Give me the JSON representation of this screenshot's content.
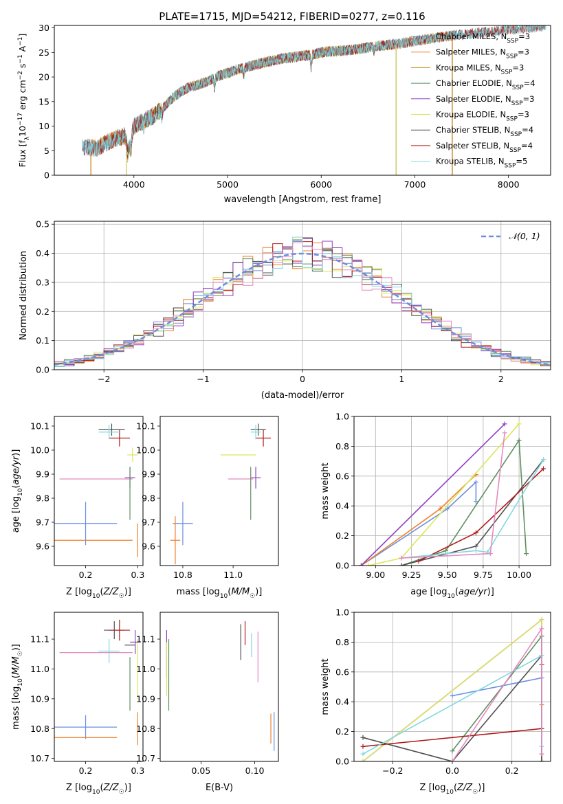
{
  "figure": {
    "title": "PLATE=1715, MJD=54212, FIBERID=0277, z=0.116"
  },
  "colors": {
    "Chabrier MILES": "#6b8fe0",
    "Salpeter MILES": "#f07f2a",
    "Kroupa MILES": "#c8901e",
    "Chabrier ELODIE": "#5f8f5f",
    "Salpeter ELODIE": "#8f3fbf",
    "Kroupa ELODIE": "#dbe65a",
    "Chabrier STELIB": "#505050",
    "Salpeter STELIB": "#b01a1a",
    "Kroupa STELIB": "#82d8e0",
    "normal_curve": "#6b8fe0",
    "extra_pink": "#e58ac0"
  },
  "chart_data": [
    {
      "id": "spectrum",
      "type": "line",
      "title": "PLATE=1715, MJD=54212, FIBERID=0277, z=0.116",
      "xlabel": "wavelength [Angstrom, rest frame]",
      "ylabel": "Flux [fλ10⁻¹⁷ erg cm⁻² s⁻¹ A⁻¹]",
      "xlim": [
        3150,
        8450
      ],
      "ylim": [
        0,
        30.5
      ],
      "xticks": [
        4000,
        5000,
        6000,
        7000,
        8000
      ],
      "yticks": [
        0,
        5,
        10,
        15,
        20,
        25,
        30
      ],
      "legend_position": "right",
      "continuum": {
        "x": [
          3450,
          3600,
          3700,
          3800,
          3900,
          3950,
          4000,
          4100,
          4200,
          4300,
          4400,
          4500,
          4600,
          4700,
          4800,
          4900,
          5000,
          5100,
          5200,
          5300,
          5400,
          5500,
          5600,
          5700,
          5800,
          5900,
          6000,
          6100,
          6200,
          6300,
          6400,
          6500,
          6600,
          6700,
          6800,
          6900,
          7000,
          7100,
          7200,
          7300,
          7400,
          7500,
          7600,
          7700,
          7800,
          7900,
          8000,
          8100,
          8200,
          8300,
          8400
        ],
        "y": [
          5.8,
          5.5,
          6.5,
          7.5,
          8.0,
          5.5,
          10.0,
          11.0,
          12.0,
          13.5,
          15.5,
          17.0,
          18.0,
          18.5,
          19.2,
          20.2,
          20.8,
          21.5,
          22.0,
          22.5,
          23.0,
          23.4,
          23.8,
          24.0,
          24.3,
          24.5,
          25.0,
          25.2,
          25.3,
          25.5,
          25.7,
          26.0,
          26.3,
          26.5,
          26.7,
          27.0,
          27.3,
          27.6,
          27.9,
          28.2,
          28.4,
          28.6,
          28.8,
          29.0,
          29.2,
          29.4,
          29.6,
          29.8,
          30.0,
          30.2,
          30.4
        ]
      },
      "dips": [
        {
          "x": 3934,
          "depth": 2.0
        },
        {
          "x": 3969,
          "depth": 2.0
        },
        {
          "x": 4102,
          "depth": 1.0
        },
        {
          "x": 4300,
          "depth": 1.5
        },
        {
          "x": 4861,
          "depth": 2.0
        },
        {
          "x": 5175,
          "depth": 1.5
        },
        {
          "x": 5893,
          "depth": 2.5
        },
        {
          "x": 6563,
          "depth": 1.0
        }
      ],
      "series": [
        {
          "name": "Chabrier MILES, N_SSP=3",
          "color": "#6b8fe0",
          "range": [
            3450,
            7400
          ]
        },
        {
          "name": "Salpeter MILES, N_SSP=3",
          "color": "#f07f2a",
          "range": [
            3540,
            7400
          ]
        },
        {
          "name": "Kroupa MILES, N_SSP=3",
          "color": "#c8901e",
          "range": [
            3540,
            7400
          ]
        },
        {
          "name": "Chabrier ELODIE, N_SSP=4",
          "color": "#5f8f5f",
          "range": [
            3920,
            6800
          ]
        },
        {
          "name": "Salpeter ELODIE, N_SSP=3",
          "color": "#8f3fbf",
          "range": [
            3920,
            6800
          ]
        },
        {
          "name": "Kroupa ELODIE, N_SSP=3",
          "color": "#dbe65a",
          "range": [
            3920,
            6800
          ]
        },
        {
          "name": "Chabrier STELIB, N_SSP=4",
          "color": "#505050",
          "range": [
            3450,
            8400
          ]
        },
        {
          "name": "Salpeter STELIB, N_SSP=4",
          "color": "#b01a1a",
          "range": [
            3450,
            8400
          ]
        },
        {
          "name": "Kroupa STELIB, N_SSP=5",
          "color": "#82d8e0",
          "range": [
            3450,
            8400
          ]
        }
      ],
      "legend": [
        {
          "prefix": "Chabrier MILES, N",
          "sub": "SSP",
          "suffix": "=3",
          "color": "#6b8fe0"
        },
        {
          "prefix": "Salpeter MILES, N",
          "sub": "SSP",
          "suffix": "=3",
          "color": "#f07f2a"
        },
        {
          "prefix": "Kroupa MILES, N",
          "sub": "SSP",
          "suffix": "=3",
          "color": "#c8901e"
        },
        {
          "prefix": "Chabrier ELODIE, N",
          "sub": "SSP",
          "suffix": "=4",
          "color": "#5f8f5f"
        },
        {
          "prefix": "Salpeter ELODIE, N",
          "sub": "SSP",
          "suffix": "=3",
          "color": "#8f3fbf"
        },
        {
          "prefix": "Kroupa ELODIE, N",
          "sub": "SSP",
          "suffix": "=3",
          "color": "#dbe65a"
        },
        {
          "prefix": "Chabrier STELIB, N",
          "sub": "SSP",
          "suffix": "=4",
          "color": "#505050"
        },
        {
          "prefix": "Salpeter STELIB, N",
          "sub": "SSP",
          "suffix": "=4",
          "color": "#b01a1a"
        },
        {
          "prefix": "Kroupa STELIB, N",
          "sub": "SSP",
          "suffix": "=5",
          "color": "#82d8e0"
        }
      ]
    },
    {
      "id": "residuals",
      "type": "line",
      "xlabel": "(data-model)/error",
      "ylabel": "Normed distribution",
      "xlim": [
        -2.5,
        2.5
      ],
      "ylim": [
        0,
        0.51
      ],
      "xticks": [
        -2,
        -1,
        0,
        1,
        2
      ],
      "yticks": [
        0.0,
        0.1,
        0.2,
        0.3,
        0.4,
        0.5
      ],
      "grid": true,
      "legend_position": "top-right",
      "legend": [
        {
          "label": "𝒩(0, 1)",
          "color": "#6b8fe0"
        }
      ],
      "bin_width": 0.1,
      "series_colors": [
        "#6b8fe0",
        "#f07f2a",
        "#5f8f5f",
        "#8f3fbf",
        "#dbe65a",
        "#505050",
        "#b01a1a",
        "#82d8e0",
        "#e58ac0"
      ]
    },
    {
      "id": "age-vs-Z",
      "type": "scatter",
      "xlabel": "Z [log10(Z/Z☉)]",
      "ylabel": "age [log10(age/yr)]",
      "xlim": [
        0.14,
        0.31
      ],
      "ylim": [
        9.52,
        10.14
      ],
      "xticks": [
        0.2,
        0.3
      ],
      "yticks": [
        9.6,
        9.7,
        9.8,
        9.9,
        10.0,
        10.1
      ],
      "points": [
        {
          "x": 0.2,
          "y": 9.695,
          "xerr": 0.06,
          "yerr": 0.09,
          "color": "#6b8fe0"
        },
        {
          "x": 0.2,
          "y": 9.625,
          "xerr": 0.09,
          "yerr": 0.0,
          "color": "#f07f2a"
        },
        {
          "x": 0.3,
          "y": 9.625,
          "xerr": 0.0,
          "yerr": 0.07,
          "color": "#f07f2a"
        },
        {
          "x": 0.25,
          "y": 10.085,
          "xerr": 0.025,
          "yerr": 0.025,
          "color": "#505050"
        },
        {
          "x": 0.265,
          "y": 10.05,
          "xerr": 0.02,
          "yerr": 0.035,
          "color": "#b01a1a"
        },
        {
          "x": 0.245,
          "y": 10.075,
          "xerr": 0.02,
          "yerr": 0.03,
          "color": "#82d8e0"
        },
        {
          "x": 0.285,
          "y": 9.885,
          "xerr": 0.01,
          "yerr": 0.045,
          "color": "#8f3fbf"
        },
        {
          "x": 0.22,
          "y": 9.88,
          "xerr": 0.07,
          "yerr": 0.0,
          "color": "#e58ac0"
        },
        {
          "x": 0.285,
          "y": 9.82,
          "xerr": 0.0,
          "yerr": 0.11,
          "color": "#5f8f5f"
        },
        {
          "x": 0.29,
          "y": 9.98,
          "xerr": 0.01,
          "yerr": 0.03,
          "color": "#dbe65a"
        }
      ]
    },
    {
      "id": "age-vs-mass",
      "type": "scatter",
      "xlabel": "mass [log10(M/M☉)]",
      "ylabel": "",
      "xlim": [
        10.71,
        11.18
      ],
      "ylim": [
        9.52,
        10.14
      ],
      "xticks": [
        10.8,
        11.0
      ],
      "yticks": [
        9.6,
        9.7,
        9.8,
        9.9,
        10.0,
        10.1
      ],
      "points": [
        {
          "x": 10.8,
          "y": 9.695,
          "xerr": 0.04,
          "yerr": 0.09,
          "color": "#6b8fe0"
        },
        {
          "x": 10.77,
          "y": 9.625,
          "xerr": 0.02,
          "yerr": 0.1,
          "color": "#f07f2a"
        },
        {
          "x": 11.1,
          "y": 10.085,
          "xerr": 0.03,
          "yerr": 0.025,
          "color": "#505050"
        },
        {
          "x": 11.12,
          "y": 10.05,
          "xerr": 0.03,
          "yerr": 0.035,
          "color": "#b01a1a"
        },
        {
          "x": 11.09,
          "y": 10.075,
          "xerr": 0.02,
          "yerr": 0.03,
          "color": "#82d8e0"
        },
        {
          "x": 11.09,
          "y": 9.885,
          "xerr": 0.02,
          "yerr": 0.045,
          "color": "#8f3fbf"
        },
        {
          "x": 11.03,
          "y": 9.88,
          "xerr": 0.05,
          "yerr": 0.0,
          "color": "#e58ac0"
        },
        {
          "x": 11.07,
          "y": 9.82,
          "xerr": 0.0,
          "yerr": 0.11,
          "color": "#5f8f5f"
        },
        {
          "x": 11.02,
          "y": 9.98,
          "xerr": 0.07,
          "yerr": 0.0,
          "color": "#dbe65a"
        }
      ]
    },
    {
      "id": "mass-weight-vs-age",
      "type": "line",
      "xlabel": "age [log10(age/yr)]",
      "ylabel": "mass weight",
      "xlim": [
        8.85,
        10.22
      ],
      "ylim": [
        0,
        1.0
      ],
      "xticks": [
        9.0,
        9.25,
        9.5,
        9.75,
        10.0
      ],
      "yticks": [
        0.0,
        0.2,
        0.4,
        0.6,
        0.8,
        1.0
      ],
      "grid": true,
      "series": [
        {
          "color": "#6b8fe0",
          "x": [
            8.9,
            9.5,
            9.7,
            9.7
          ],
          "y": [
            0.0,
            0.38,
            0.56,
            0.43
          ]
        },
        {
          "color": "#f07f2a",
          "x": [
            8.9,
            9.45,
            9.7
          ],
          "y": [
            0.0,
            0.38,
            0.61
          ]
        },
        {
          "color": "#8f3fbf",
          "x": [
            8.9,
            9.9
          ],
          "y": [
            0.0,
            0.95
          ]
        },
        {
          "color": "#dbe65a",
          "x": [
            8.95,
            9.18,
            10.0
          ],
          "y": [
            0.0,
            0.05,
            0.95
          ]
        },
        {
          "color": "#5f8f5f",
          "x": [
            9.18,
            9.49,
            10.0,
            10.05
          ],
          "y": [
            0.0,
            0.1,
            0.84,
            0.08
          ]
        },
        {
          "color": "#505050",
          "x": [
            9.18,
            9.7,
            10.17
          ],
          "y": [
            0.0,
            0.13,
            0.71
          ]
        },
        {
          "color": "#b01a1a",
          "x": [
            9.3,
            9.7,
            10.17
          ],
          "y": [
            0.03,
            0.22,
            0.65
          ]
        },
        {
          "color": "#82d8e0",
          "x": [
            9.18,
            9.7,
            9.78,
            10.17
          ],
          "y": [
            0.05,
            0.1,
            0.09,
            0.71
          ]
        },
        {
          "color": "#e58ac0",
          "x": [
            9.18,
            9.8,
            9.9
          ],
          "y": [
            0.05,
            0.08,
            0.89
          ]
        }
      ]
    },
    {
      "id": "mass-vs-Z",
      "type": "scatter",
      "xlabel": "Z [log10(Z/Z☉)]",
      "ylabel": "mass [log10(M/M☉)]",
      "xlim": [
        0.14,
        0.31
      ],
      "ylim": [
        10.69,
        11.19
      ],
      "xticks": [
        0.2,
        0.3
      ],
      "yticks": [
        10.7,
        10.8,
        10.9,
        11.0,
        11.1
      ],
      "points": [
        {
          "x": 0.2,
          "y": 10.805,
          "xerr": 0.06,
          "yerr": 0.04,
          "color": "#6b8fe0"
        },
        {
          "x": 0.2,
          "y": 10.77,
          "xerr": 0.06,
          "yerr": 0.0,
          "color": "#f07f2a"
        },
        {
          "x": 0.3,
          "y": 10.8,
          "xerr": 0.0,
          "yerr": 0.055,
          "color": "#f07f2a"
        },
        {
          "x": 0.255,
          "y": 11.13,
          "xerr": 0.02,
          "yerr": 0.03,
          "color": "#505050"
        },
        {
          "x": 0.265,
          "y": 11.13,
          "xerr": 0.02,
          "yerr": 0.035,
          "color": "#b01a1a"
        },
        {
          "x": 0.245,
          "y": 11.06,
          "xerr": 0.02,
          "yerr": 0.04,
          "color": "#82d8e0"
        },
        {
          "x": 0.295,
          "y": 11.09,
          "xerr": 0.01,
          "yerr": 0.04,
          "color": "#8f3fbf"
        },
        {
          "x": 0.22,
          "y": 11.055,
          "xerr": 0.07,
          "yerr": 0.0,
          "color": "#e58ac0"
        },
        {
          "x": 0.285,
          "y": 10.95,
          "xerr": 0.0,
          "yerr": 0.09,
          "color": "#5f8f5f"
        },
        {
          "x": 0.285,
          "y": 11.08,
          "xerr": 0.01,
          "yerr": 0.0,
          "color": "#505050"
        },
        {
          "x": 0.3,
          "y": 11.0,
          "xerr": 0.0,
          "yerr": 0.1,
          "color": "#dbe65a"
        }
      ]
    },
    {
      "id": "mass-vs-EBV",
      "type": "scatter",
      "xlabel": "E(B-V)",
      "ylabel": "",
      "xlim": [
        0.012,
        0.122
      ],
      "ylim": [
        10.69,
        11.19
      ],
      "xticks": [
        0.05,
        0.1
      ],
      "yticks": [
        10.7,
        10.8,
        10.9,
        11.0,
        11.1
      ],
      "points": [
        {
          "x": 0.018,
          "y": 11.05,
          "xerr": 0.0,
          "yerr": 0.08,
          "color": "#8f3fbf"
        },
        {
          "x": 0.018,
          "y": 11.0,
          "xerr": 0.0,
          "yerr": 0.09,
          "color": "#dbe65a"
        },
        {
          "x": 0.02,
          "y": 10.98,
          "xerr": 0.0,
          "yerr": 0.12,
          "color": "#5f8f5f"
        },
        {
          "x": 0.087,
          "y": 11.09,
          "xerr": 0.0,
          "yerr": 0.06,
          "color": "#505050"
        },
        {
          "x": 0.091,
          "y": 11.12,
          "xerr": 0.0,
          "yerr": 0.04,
          "color": "#b01a1a"
        },
        {
          "x": 0.097,
          "y": 11.08,
          "xerr": 0.0,
          "yerr": 0.04,
          "color": "#82d8e0"
        },
        {
          "x": 0.103,
          "y": 11.04,
          "xerr": 0.0,
          "yerr": 0.085,
          "color": "#e58ac0"
        },
        {
          "x": 0.115,
          "y": 10.8,
          "xerr": 0.0,
          "yerr": 0.05,
          "color": "#f07f2a"
        },
        {
          "x": 0.118,
          "y": 10.79,
          "xerr": 0.0,
          "yerr": 0.065,
          "color": "#6b8fe0"
        }
      ]
    },
    {
      "id": "mass-weight-vs-Z",
      "type": "line",
      "xlabel": "Z [log10(Z/Z☉)]",
      "ylabel": "mass weight",
      "xlim": [
        -0.33,
        0.33
      ],
      "ylim": [
        0,
        1.0
      ],
      "xticks": [
        -0.2,
        0.0,
        0.2
      ],
      "yticks": [
        0.0,
        0.2,
        0.4,
        0.6,
        0.8,
        1.0
      ],
      "grid": true,
      "series": [
        {
          "color": "#6b8fe0",
          "x": [
            0.0,
            0.3,
            0.3
          ],
          "y": [
            0.44,
            0.56,
            0.05
          ]
        },
        {
          "color": "#f07f2a",
          "x": [
            0.3,
            0.3
          ],
          "y": [
            0.0,
            0.38
          ]
        },
        {
          "color": "#8f3fbf",
          "x": [
            -0.3,
            0.3,
            0.3
          ],
          "y": [
            0.0,
            0.95,
            0.05
          ]
        },
        {
          "color": "#dbe65a",
          "x": [
            -0.3,
            0.3,
            0.3
          ],
          "y": [
            0.0,
            0.95,
            0.05
          ]
        },
        {
          "color": "#5f8f5f",
          "x": [
            0.0,
            0.3,
            0.3
          ],
          "y": [
            0.07,
            0.84,
            0.0
          ]
        },
        {
          "color": "#505050",
          "x": [
            -0.3,
            0.0,
            0.3,
            0.3
          ],
          "y": [
            0.16,
            0.0,
            0.71,
            0.0
          ]
        },
        {
          "color": "#b01a1a",
          "x": [
            -0.3,
            0.3,
            0.3
          ],
          "y": [
            0.1,
            0.22,
            0.65
          ]
        },
        {
          "color": "#82d8e0",
          "x": [
            -0.3,
            0.3,
            0.3
          ],
          "y": [
            0.05,
            0.71,
            0.1
          ]
        },
        {
          "color": "#e58ac0",
          "x": [
            0.0,
            0.3,
            0.3
          ],
          "y": [
            0.0,
            0.89,
            0.05
          ]
        }
      ]
    }
  ]
}
